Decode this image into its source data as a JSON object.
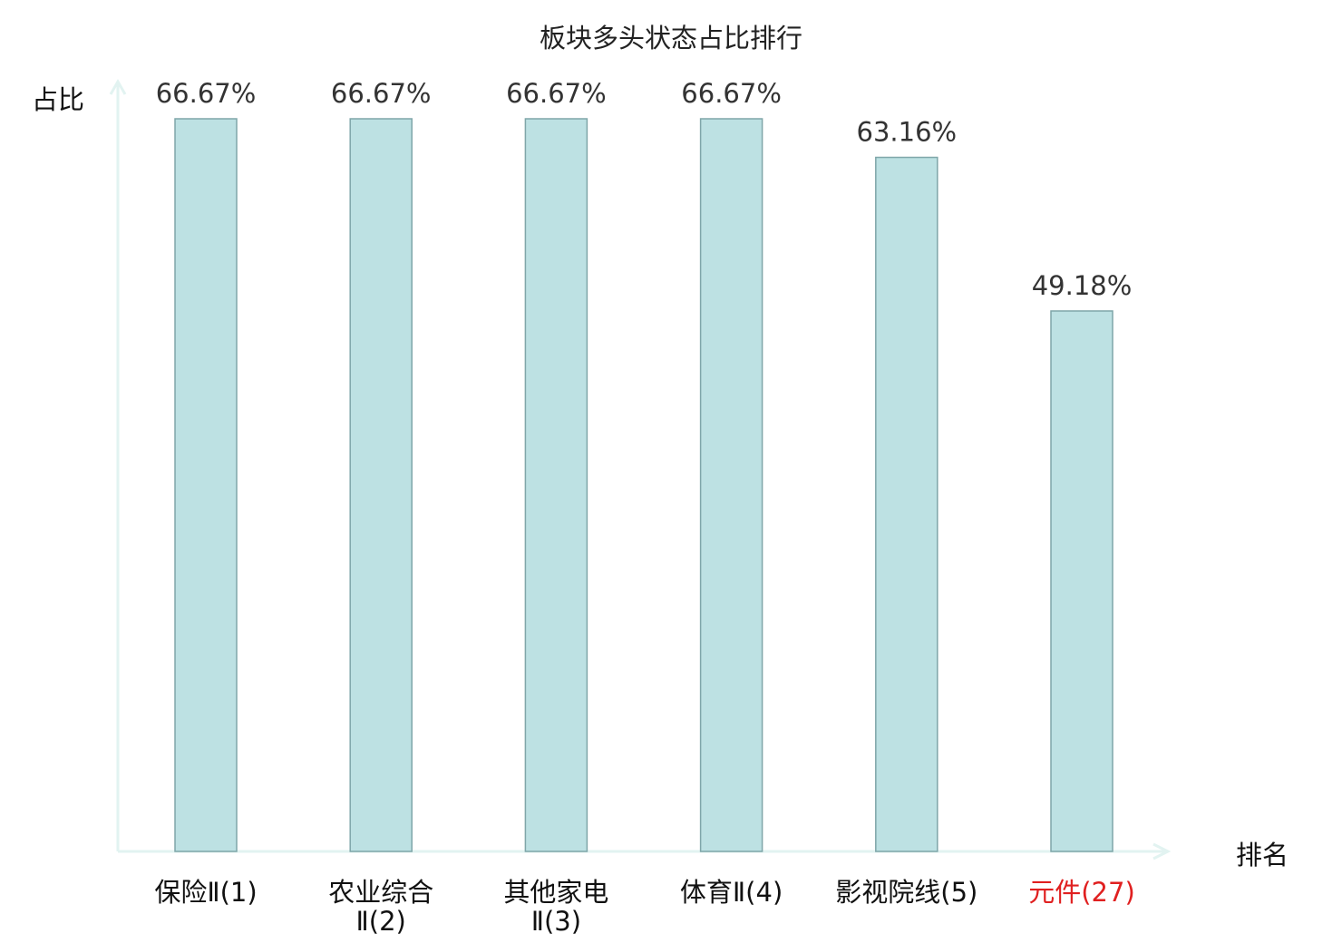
{
  "chart_data": {
    "type": "bar",
    "title": "板块多头状态占比排行",
    "ylabel": "占比",
    "xlabel": "排名",
    "grid": false,
    "ylim": [
      0,
      70
    ],
    "unit": "%",
    "categories": [
      {
        "name": "保险Ⅱ",
        "rank": "(1)",
        "lines": [
          "保险Ⅱ(1)"
        ],
        "highlight": false
      },
      {
        "name": "农业综合Ⅱ",
        "rank": "(2)",
        "lines": [
          "农业综合",
          "Ⅱ(2)"
        ],
        "highlight": false
      },
      {
        "name": "其他家电Ⅱ",
        "rank": "(3)",
        "lines": [
          "其他家电",
          "Ⅱ(3)"
        ],
        "highlight": false
      },
      {
        "name": "体育Ⅱ",
        "rank": "(4)",
        "lines": [
          "体育Ⅱ(4)"
        ],
        "highlight": false
      },
      {
        "name": "影视院线",
        "rank": "(5)",
        "lines": [
          "影视院线(5)"
        ],
        "highlight": false
      },
      {
        "name": "元件",
        "rank": "(27)",
        "lines": [
          "元件(27)"
        ],
        "highlight": true
      }
    ],
    "values": [
      66.67,
      66.67,
      66.67,
      66.67,
      63.16,
      49.18
    ],
    "value_labels": [
      "66.67%",
      "66.67%",
      "66.67%",
      "66.67%",
      "63.16%",
      "49.18%"
    ],
    "colors": {
      "bar_fill": "#bde1e3",
      "bar_stroke": "#7fa6a9",
      "axis": "#e2f3f1",
      "highlight": "#e02020"
    }
  }
}
